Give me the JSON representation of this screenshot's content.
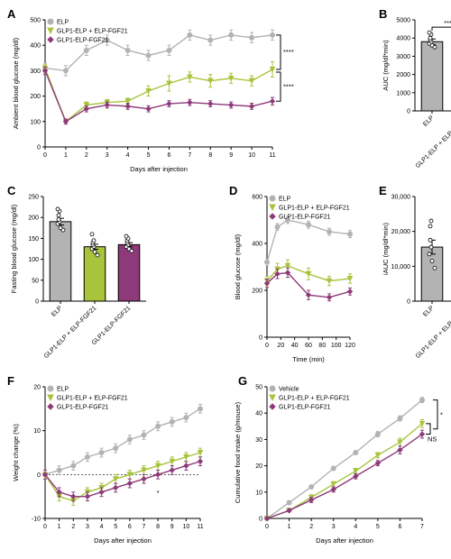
{
  "groups": {
    "elp": {
      "label": "ELP",
      "color": "#b3b3b3"
    },
    "combo": {
      "label": "GLP1-ELP + ELP-FGF21",
      "color": "#a7c43c"
    },
    "fusion": {
      "label": "GLP1-ELP-FGF21",
      "color": "#8e3a7a"
    },
    "vehicle": {
      "label": "Vehicle",
      "color": "#b3b3b3"
    }
  },
  "labels": {
    "panelA": "A",
    "panelB": "B",
    "panelC": "C",
    "panelD": "D",
    "panelE": "E",
    "panelF": "F",
    "panelG": "G"
  },
  "A": {
    "type": "line",
    "xlabel": "Days after injection",
    "ylabel": "Ambient blood glucose (mg/dl)",
    "x": [
      0,
      1,
      2,
      3,
      4,
      5,
      6,
      7,
      8,
      9,
      10,
      11
    ],
    "xlim": [
      0,
      11
    ],
    "xtick_step": 1,
    "ylim": [
      0,
      500
    ],
    "ytick_step": 100,
    "series": {
      "elp": {
        "y": [
          310,
          300,
          380,
          420,
          380,
          360,
          380,
          440,
          420,
          440,
          430,
          440
        ],
        "err": [
          20,
          20,
          20,
          20,
          20,
          20,
          20,
          20,
          20,
          20,
          20,
          20
        ]
      },
      "combo": {
        "y": [
          310,
          100,
          165,
          175,
          180,
          220,
          250,
          275,
          260,
          270,
          260,
          305
        ],
        "err": [
          15,
          10,
          12,
          12,
          12,
          20,
          30,
          20,
          25,
          20,
          20,
          30
        ]
      },
      "fusion": {
        "y": [
          300,
          100,
          150,
          165,
          160,
          150,
          170,
          175,
          170,
          165,
          160,
          180
        ],
        "err": [
          15,
          10,
          12,
          12,
          12,
          12,
          12,
          12,
          12,
          12,
          12,
          15
        ]
      }
    },
    "sig": [
      {
        "groups": [
          "elp",
          "combo"
        ],
        "label": "****"
      },
      {
        "groups": [
          "combo",
          "fusion"
        ],
        "label": "****"
      }
    ]
  },
  "B": {
    "type": "bar",
    "ylabel": "AUC (mg/dl*min)",
    "ylim": [
      0,
      5000
    ],
    "ytick_step": 1000,
    "bars": {
      "elp": {
        "mean": 3800,
        "err": 150,
        "scatter": [
          3500,
          3600,
          3700,
          3800,
          3900,
          4000,
          4200,
          4300
        ]
      },
      "combo": {
        "mean": 2400,
        "err": 150,
        "scatter": [
          2050,
          2200,
          2300,
          2400,
          2500,
          2700,
          2900,
          3050
        ]
      },
      "fusion": {
        "mean": 1800,
        "err": 60,
        "scatter": [
          1650,
          1700,
          1750,
          1800,
          1850,
          1900,
          1950
        ]
      }
    },
    "sig": [
      {
        "from": "elp",
        "to": "combo",
        "label": "****",
        "y": 4600
      },
      {
        "from": "combo",
        "to": "fusion",
        "label": "*",
        "y": 3400
      }
    ]
  },
  "C": {
    "type": "bar",
    "ylabel": "Fasting blood glucose (mg/dl)",
    "ylim": [
      0,
      250
    ],
    "ytick_step": 50,
    "bars": {
      "elp": {
        "mean": 190,
        "err": 8,
        "scatter": [
          170,
          175,
          185,
          190,
          195,
          205,
          215,
          220
        ]
      },
      "combo": {
        "mean": 130,
        "err": 6,
        "scatter": [
          110,
          118,
          125,
          130,
          135,
          140,
          145,
          160
        ]
      },
      "fusion": {
        "mean": 135,
        "err": 5,
        "scatter": [
          120,
          125,
          130,
          135,
          140,
          145,
          150,
          155
        ]
      }
    },
    "sig": []
  },
  "D": {
    "type": "line",
    "xlabel": "Time (min)",
    "ylabel": "Blood glucose (mg/dl)",
    "x": [
      0,
      15,
      30,
      60,
      90,
      120
    ],
    "xlim": [
      0,
      120
    ],
    "xticks": [
      0,
      20,
      40,
      60,
      80,
      100,
      120
    ],
    "ylim": [
      0,
      600
    ],
    "ytick_step": 200,
    "series": {
      "elp": {
        "y": [
          320,
          470,
          500,
          480,
          450,
          440
        ],
        "err": [
          15,
          15,
          15,
          15,
          15,
          15
        ]
      },
      "combo": {
        "y": [
          240,
          290,
          305,
          270,
          240,
          250
        ],
        "err": [
          20,
          25,
          25,
          25,
          20,
          20
        ]
      },
      "fusion": {
        "y": [
          230,
          270,
          275,
          180,
          170,
          195
        ],
        "err": [
          18,
          20,
          20,
          20,
          15,
          15
        ]
      }
    },
    "sig": []
  },
  "E": {
    "type": "bar",
    "ylabel": "iAUC (mg/dl*min)",
    "ylim": [
      0,
      30000
    ],
    "ytick_step": 10000,
    "ytick_fmt": "comma",
    "bars": {
      "elp": {
        "mean": 15500,
        "err": 2000,
        "scatter": [
          9500,
          11500,
          13500,
          15500,
          17500,
          21500,
          23000
        ]
      },
      "combo": {
        "mean": 16000,
        "err": 1200,
        "scatter": [
          11500,
          13500,
          15500,
          16000,
          17500,
          19500,
          20500
        ]
      },
      "fusion": {
        "mean": 8500,
        "err": 1500,
        "scatter": [
          4000,
          5500,
          7000,
          8500,
          10500,
          13500,
          15000
        ]
      }
    },
    "sig": [
      {
        "from": "combo",
        "to": "fusion",
        "label": "*",
        "y": 22500
      }
    ]
  },
  "F": {
    "type": "line",
    "xlabel": "Days after injection",
    "ylabel": "Weight change (%)",
    "x": [
      0,
      1,
      2,
      3,
      4,
      5,
      6,
      7,
      8,
      9,
      10,
      11
    ],
    "xlim": [
      0,
      11
    ],
    "xtick_step": 1,
    "ylim": [
      -10,
      20
    ],
    "ytick_step": 10,
    "zero_line": true,
    "series": {
      "elp": {
        "y": [
          0,
          1,
          2,
          4,
          5,
          6,
          8,
          9,
          11,
          12,
          13,
          15
        ],
        "err": [
          1,
          1,
          1,
          1,
          1,
          1,
          1,
          1,
          1,
          1,
          1,
          1
        ]
      },
      "combo": {
        "y": [
          0,
          -5,
          -6,
          -4,
          -3,
          -1,
          0,
          1,
          2,
          3,
          4,
          5
        ],
        "err": [
          1,
          1,
          1,
          1,
          1,
          1,
          1,
          1,
          1,
          1,
          1,
          1
        ]
      },
      "fusion": {
        "y": [
          0,
          -4,
          -5,
          -5,
          -4,
          -3,
          -2,
          -1,
          0,
          1,
          2,
          3
        ],
        "err": [
          1,
          1,
          1,
          1,
          1,
          1,
          1,
          1,
          1,
          1,
          1,
          1
        ]
      }
    },
    "sig_text": "*",
    "sig_x": 8
  },
  "G": {
    "type": "line",
    "xlabel": "Days after injection",
    "ylabel": "Cumulative food intake (g/mouse)",
    "x": [
      0,
      1,
      2,
      3,
      4,
      5,
      6,
      7
    ],
    "xlim": [
      0,
      7
    ],
    "xtick_step": 1,
    "ylim": [
      0,
      50
    ],
    "ytick_step": 10,
    "series": {
      "vehicle": {
        "y": [
          0,
          6,
          12,
          19,
          25,
          32,
          38,
          45
        ],
        "err": [
          0.5,
          0.5,
          0.5,
          0.5,
          0.5,
          1,
          1,
          1
        ]
      },
      "combo": {
        "y": [
          0,
          3,
          8,
          13,
          18,
          24,
          29,
          36
        ],
        "err": [
          0.5,
          0.5,
          1,
          1,
          1,
          1,
          1.5,
          1.5
        ]
      },
      "fusion": {
        "y": [
          0,
          3,
          7,
          11,
          16,
          21,
          26,
          32
        ],
        "err": [
          0.5,
          0.5,
          1,
          1,
          1,
          1,
          1.5,
          1.5
        ]
      }
    },
    "sig": [
      {
        "label": "*",
        "y_span": [
          45,
          34
        ]
      },
      {
        "label": "NS",
        "y_span": [
          36,
          32
        ]
      }
    ]
  }
}
